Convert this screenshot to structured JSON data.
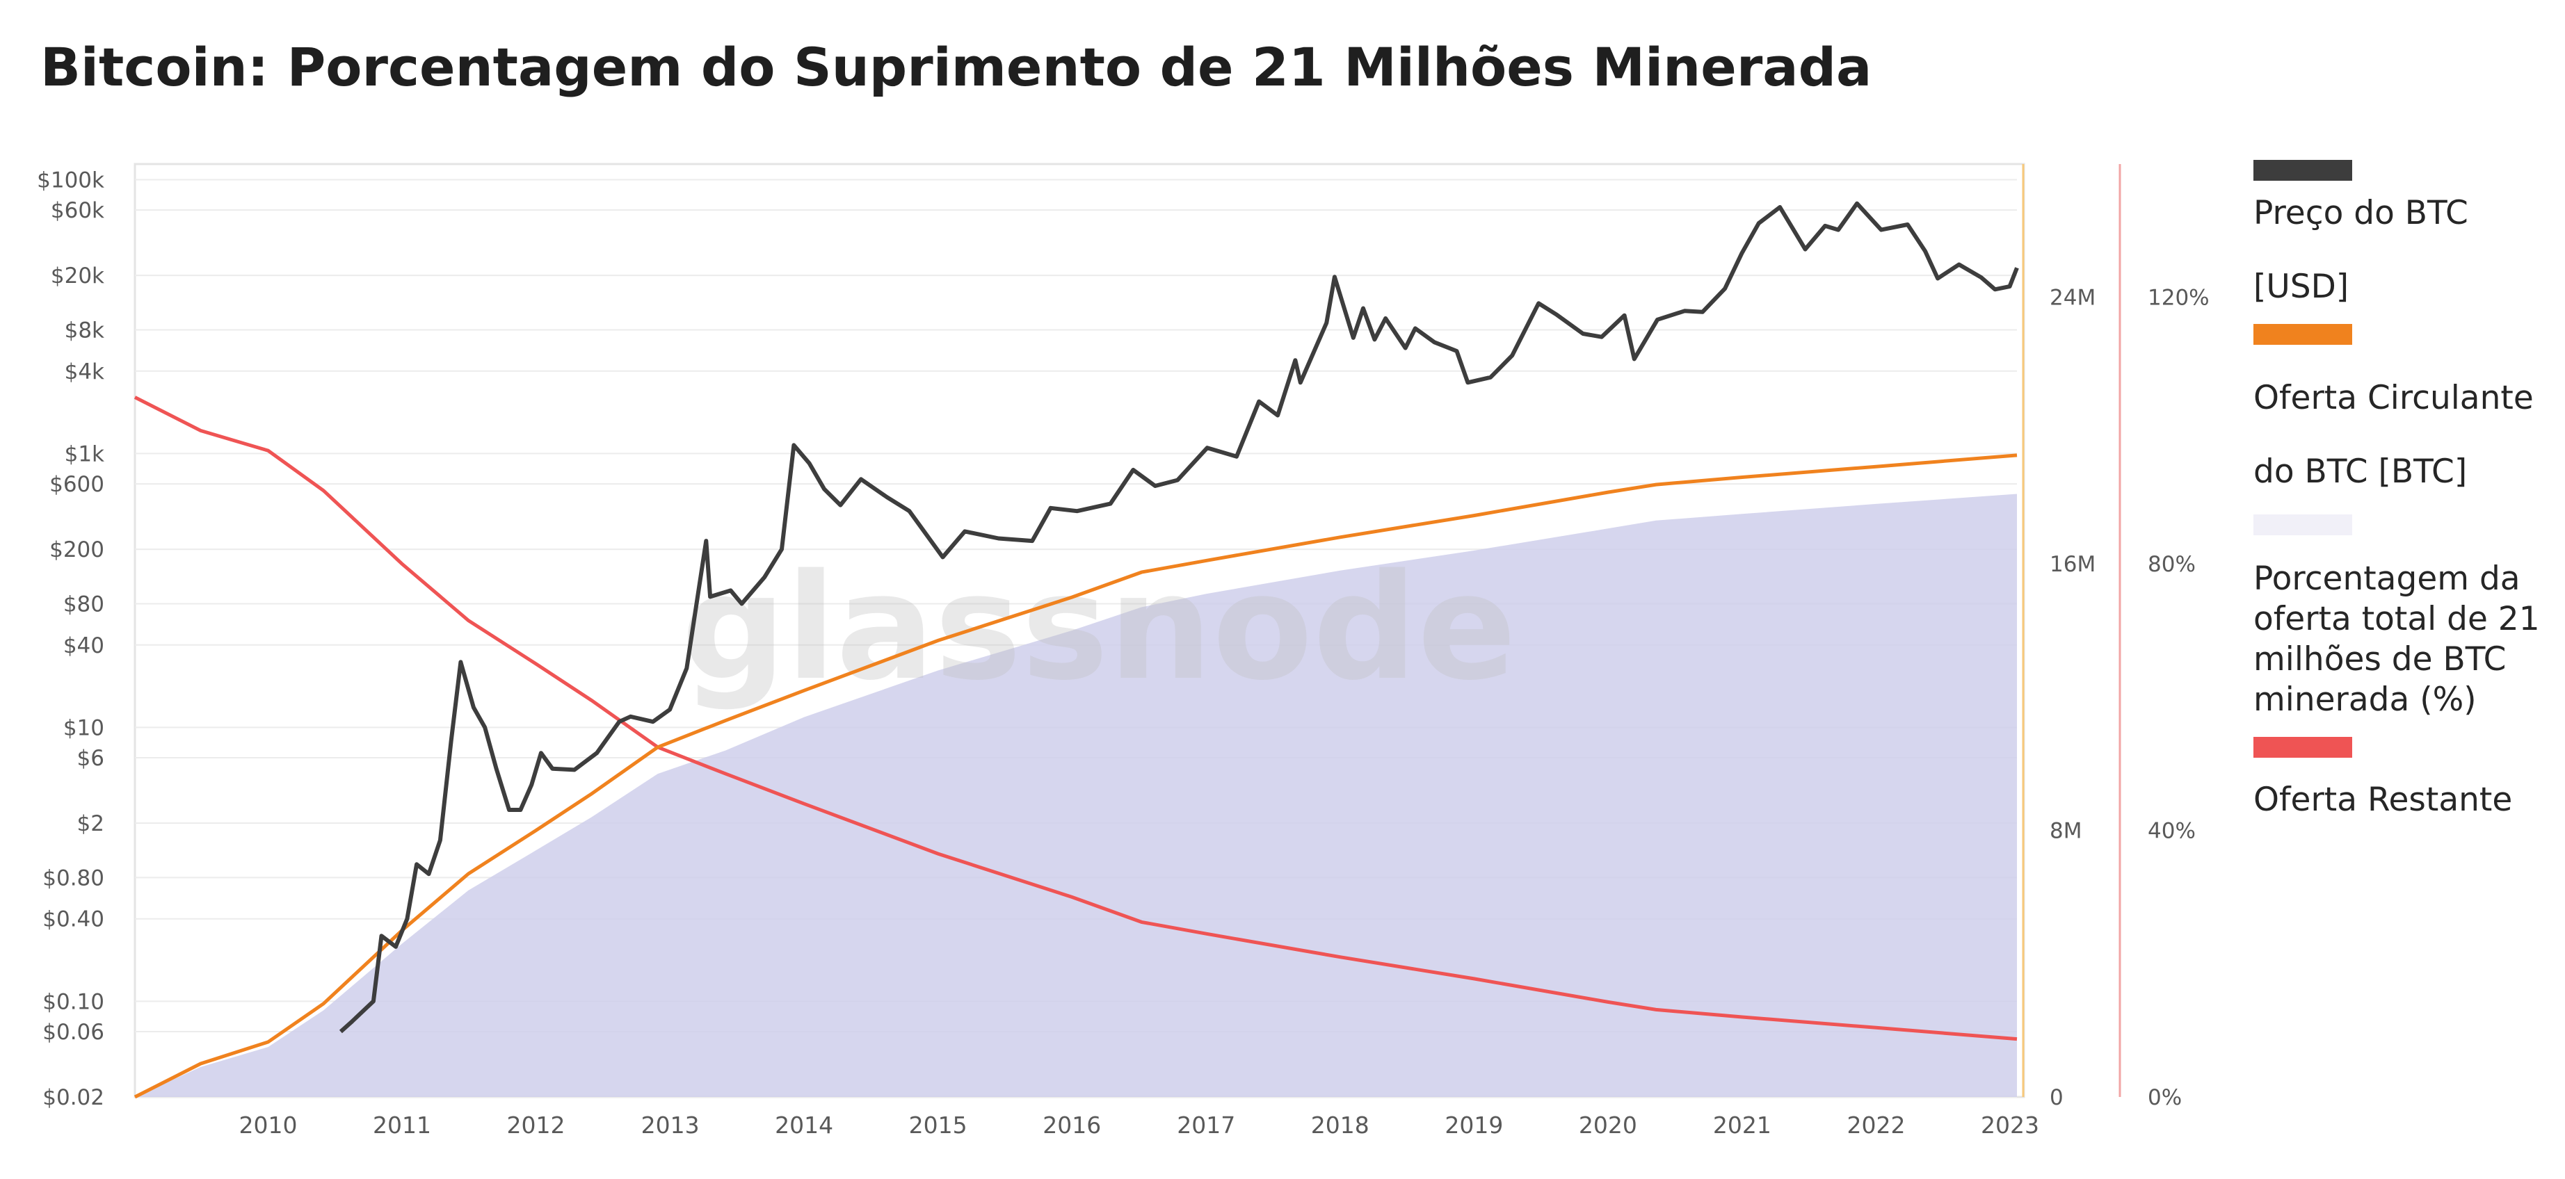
{
  "title": "Bitcoin: Porcentagem do Suprimento de 21 Milhões Minerada",
  "watermark": "glassnode",
  "colors": {
    "price": "#3d3d3d",
    "supply": "#f0821e",
    "pct_area": "#cfcfeb",
    "remaining": "#ef5454",
    "supply_axis_line": "#f7c87a",
    "pct_axis_line": "#f2a5a5"
  },
  "legend": {
    "price_l1": "Preço do BTC",
    "price_l2": "[USD]",
    "supply_l1": "Oferta Circulante",
    "supply_l2": "do BTC [BTC]",
    "pct": "Porcentagem da oferta total de 21 milhões de BTC minerada (%)",
    "remaining": "Oferta Restante"
  },
  "chart_data": {
    "type": "line",
    "title": "Bitcoin: Porcentagem do Suprimento de 21 Milhões Minerada",
    "x_range": [
      "2009-01-03",
      "2023-01-20"
    ],
    "x_ticks": [
      "2010",
      "2011",
      "2012",
      "2013",
      "2014",
      "2015",
      "2016",
      "2017",
      "2018",
      "2019",
      "2020",
      "2021",
      "2022",
      "2023"
    ],
    "y_left": {
      "scale": "log",
      "range": [
        0.02,
        130000
      ],
      "tick_labels": [
        "$100k",
        "$60k",
        "$20k",
        "$8k",
        "$4k",
        "$1k",
        "$600",
        "$200",
        "$80",
        "$40",
        "$10",
        "$6",
        "$2",
        "$0.80",
        "$0.40",
        "$0.10",
        "$0.06",
        "$0.02"
      ],
      "tick_values": [
        100000,
        60000,
        20000,
        8000,
        4000,
        1000,
        600,
        200,
        80,
        40,
        10,
        6,
        2,
        0.8,
        0.4,
        0.1,
        0.06,
        0.02
      ]
    },
    "y_supply": {
      "range": [
        0,
        28000000
      ],
      "tick_labels": [
        "24M",
        "16M",
        "8M",
        "0"
      ],
      "tick_values": [
        24000000,
        16000000,
        8000000,
        0
      ]
    },
    "y_pct": {
      "range": [
        0,
        140
      ],
      "tick_labels": [
        "120%",
        "80%",
        "40%",
        "0%"
      ],
      "tick_values": [
        120,
        80,
        40,
        0
      ]
    },
    "series": [
      {
        "name": "Preço do BTC [USD]",
        "axis": "price",
        "points": [
          [
            "2010-07-18",
            0.06
          ],
          [
            "2010-08-15",
            0.07
          ],
          [
            "2010-10-15",
            0.1
          ],
          [
            "2010-11-06",
            0.3
          ],
          [
            "2010-12-15",
            0.25
          ],
          [
            "2011-01-15",
            0.4
          ],
          [
            "2011-02-10",
            1.0
          ],
          [
            "2011-03-15",
            0.85
          ],
          [
            "2011-04-15",
            1.5
          ],
          [
            "2011-05-15",
            8
          ],
          [
            "2011-06-10",
            30
          ],
          [
            "2011-07-15",
            14
          ],
          [
            "2011-08-15",
            10
          ],
          [
            "2011-09-15",
            5
          ],
          [
            "2011-10-20",
            2.5
          ],
          [
            "2011-11-20",
            2.5
          ],
          [
            "2011-12-20",
            3.8
          ],
          [
            "2012-01-15",
            6.5
          ],
          [
            "2012-02-15",
            5
          ],
          [
            "2012-04-15",
            4.9
          ],
          [
            "2012-06-15",
            6.5
          ],
          [
            "2012-08-15",
            11
          ],
          [
            "2012-09-15",
            12
          ],
          [
            "2012-11-15",
            11
          ],
          [
            "2012-12-31",
            13.5
          ],
          [
            "2013-02-15",
            27
          ],
          [
            "2013-04-09",
            230
          ],
          [
            "2013-04-20",
            90
          ],
          [
            "2013-06-15",
            100
          ],
          [
            "2013-07-15",
            80
          ],
          [
            "2013-09-15",
            125
          ],
          [
            "2013-11-01",
            200
          ],
          [
            "2013-12-04",
            1150
          ],
          [
            "2014-01-15",
            850
          ],
          [
            "2014-02-25",
            550
          ],
          [
            "2014-04-10",
            420
          ],
          [
            "2014-06-05",
            650
          ],
          [
            "2014-08-15",
            480
          ],
          [
            "2014-10-15",
            380
          ],
          [
            "2015-01-14",
            175
          ],
          [
            "2015-03-15",
            270
          ],
          [
            "2015-06-15",
            240
          ],
          [
            "2015-09-15",
            230
          ],
          [
            "2015-11-04",
            400
          ],
          [
            "2016-01-15",
            380
          ],
          [
            "2016-04-15",
            430
          ],
          [
            "2016-06-16",
            760
          ],
          [
            "2016-08-15",
            580
          ],
          [
            "2016-10-15",
            640
          ],
          [
            "2017-01-04",
            1100
          ],
          [
            "2017-03-25",
            950
          ],
          [
            "2017-05-25",
            2400
          ],
          [
            "2017-07-15",
            1900
          ],
          [
            "2017-09-01",
            4800
          ],
          [
            "2017-09-15",
            3300
          ],
          [
            "2017-11-25",
            9000
          ],
          [
            "2017-12-17",
            19500
          ],
          [
            "2018-02-06",
            7000
          ],
          [
            "2018-03-05",
            11500
          ],
          [
            "2018-04-05",
            6800
          ],
          [
            "2018-05-05",
            9700
          ],
          [
            "2018-06-28",
            5900
          ],
          [
            "2018-07-25",
            8200
          ],
          [
            "2018-09-15",
            6500
          ],
          [
            "2018-11-15",
            5600
          ],
          [
            "2018-12-15",
            3300
          ],
          [
            "2019-02-15",
            3600
          ],
          [
            "2019-04-15",
            5200
          ],
          [
            "2019-06-26",
            12500
          ],
          [
            "2019-08-15",
            10300
          ],
          [
            "2019-10-25",
            7500
          ],
          [
            "2019-12-15",
            7100
          ],
          [
            "2020-02-15",
            10200
          ],
          [
            "2020-03-13",
            4900
          ],
          [
            "2020-05-15",
            9500
          ],
          [
            "2020-07-28",
            11000
          ],
          [
            "2020-09-15",
            10800
          ],
          [
            "2020-11-15",
            16000
          ],
          [
            "2020-12-31",
            29000
          ],
          [
            "2021-02-15",
            48000
          ],
          [
            "2021-04-14",
            63000
          ],
          [
            "2021-06-22",
            31000
          ],
          [
            "2021-08-15",
            46000
          ],
          [
            "2021-09-20",
            43000
          ],
          [
            "2021-11-10",
            67000
          ],
          [
            "2022-01-15",
            43000
          ],
          [
            "2022-03-28",
            47000
          ],
          [
            "2022-05-15",
            30000
          ],
          [
            "2022-06-18",
            19000
          ],
          [
            "2022-08-15",
            24000
          ],
          [
            "2022-10-15",
            19300
          ],
          [
            "2022-11-21",
            15800
          ],
          [
            "2022-12-31",
            16600
          ],
          [
            "2023-01-20",
            22700
          ]
        ]
      },
      {
        "name": "Oferta Circulante do BTC [BTC]",
        "axis": "supply",
        "points": [
          [
            "2009-01-03",
            0
          ],
          [
            "2009-07-01",
            1000000
          ],
          [
            "2010-01-01",
            1650000
          ],
          [
            "2010-06-01",
            2800000
          ],
          [
            "2011-01-01",
            5000000
          ],
          [
            "2011-07-01",
            6700000
          ],
          [
            "2012-01-01",
            8000000
          ],
          [
            "2012-06-01",
            9100000
          ],
          [
            "2012-11-28",
            10500000
          ],
          [
            "2013-06-01",
            11300000
          ],
          [
            "2014-01-01",
            12200000
          ],
          [
            "2015-01-01",
            13700000
          ],
          [
            "2016-01-01",
            15000000
          ],
          [
            "2016-07-09",
            15750000
          ],
          [
            "2017-01-01",
            16100000
          ],
          [
            "2018-01-01",
            16800000
          ],
          [
            "2019-01-01",
            17450000
          ],
          [
            "2020-01-01",
            18150000
          ],
          [
            "2020-05-11",
            18380000
          ],
          [
            "2021-01-01",
            18600000
          ],
          [
            "2022-01-01",
            18920000
          ],
          [
            "2023-01-20",
            19260000
          ]
        ]
      },
      {
        "name": "Porcentagem da oferta total de 21 milhões de BTC minerada (%)",
        "axis": "pct",
        "points": [
          [
            "2009-01-03",
            0
          ],
          [
            "2009-07-01",
            4.5
          ],
          [
            "2010-01-01",
            7.5
          ],
          [
            "2010-06-01",
            13
          ],
          [
            "2011-01-01",
            23
          ],
          [
            "2011-07-01",
            31
          ],
          [
            "2012-01-01",
            37
          ],
          [
            "2012-06-01",
            42
          ],
          [
            "2012-11-28",
            48.5
          ],
          [
            "2013-06-01",
            52
          ],
          [
            "2014-01-01",
            57
          ],
          [
            "2015-01-01",
            64
          ],
          [
            "2016-01-01",
            70
          ],
          [
            "2016-07-09",
            73.5
          ],
          [
            "2017-01-01",
            75.5
          ],
          [
            "2018-01-01",
            79
          ],
          [
            "2019-01-01",
            82
          ],
          [
            "2020-01-01",
            85.3
          ],
          [
            "2020-05-11",
            86.5
          ],
          [
            "2021-01-01",
            87.5
          ],
          [
            "2022-01-01",
            89
          ],
          [
            "2023-01-20",
            90.5
          ]
        ]
      },
      {
        "name": "Oferta Restante",
        "axis": "supply",
        "points": [
          [
            "2009-01-03",
            21000000
          ],
          [
            "2009-07-01",
            20000000
          ],
          [
            "2010-01-01",
            19400000
          ],
          [
            "2010-06-01",
            18200000
          ],
          [
            "2011-01-01",
            16000000
          ],
          [
            "2011-07-01",
            14300000
          ],
          [
            "2012-01-01",
            13000000
          ],
          [
            "2012-06-01",
            11900000
          ],
          [
            "2012-11-28",
            10500000
          ],
          [
            "2013-06-01",
            9700000
          ],
          [
            "2014-01-01",
            8800000
          ],
          [
            "2015-01-01",
            7300000
          ],
          [
            "2016-01-01",
            6000000
          ],
          [
            "2016-07-09",
            5250000
          ],
          [
            "2017-01-01",
            4900000
          ],
          [
            "2018-01-01",
            4200000
          ],
          [
            "2019-01-01",
            3550000
          ],
          [
            "2020-01-01",
            2850000
          ],
          [
            "2020-05-11",
            2620000
          ],
          [
            "2021-01-01",
            2400000
          ],
          [
            "2022-01-01",
            2080000
          ],
          [
            "2023-01-20",
            1740000
          ]
        ]
      }
    ],
    "grid": true,
    "legend_position": "right"
  }
}
